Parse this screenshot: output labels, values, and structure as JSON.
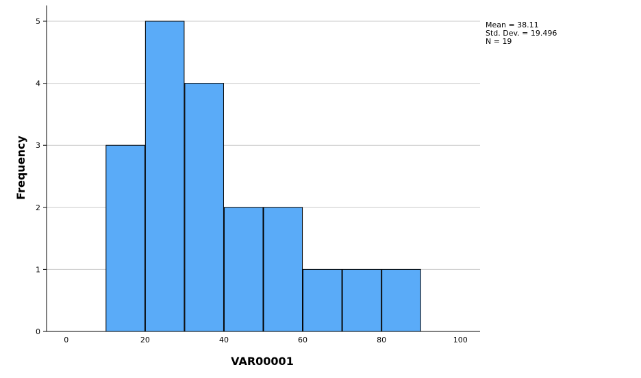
{
  "chart_data": {
    "type": "bar",
    "title": "",
    "xlabel": "VAR00001",
    "ylabel": "Frequency",
    "xlim": [
      -5,
      105
    ],
    "ylim": [
      0,
      5.25
    ],
    "x_ticks": [
      0,
      20,
      40,
      60,
      80,
      100
    ],
    "y_ticks": [
      0,
      1,
      2,
      3,
      4,
      5
    ],
    "grid": "horizontal",
    "bar_color": "#5aabf8",
    "bins": [
      {
        "start": 10,
        "end": 20,
        "value": 3
      },
      {
        "start": 20,
        "end": 30,
        "value": 5
      },
      {
        "start": 30,
        "end": 40,
        "value": 4
      },
      {
        "start": 40,
        "end": 50,
        "value": 2
      },
      {
        "start": 50,
        "end": 60,
        "value": 2
      },
      {
        "start": 60,
        "end": 70,
        "value": 1
      },
      {
        "start": 70,
        "end": 80,
        "value": 1
      },
      {
        "start": 80,
        "end": 90,
        "value": 1
      }
    ],
    "stats": {
      "mean": "Mean = 38.11",
      "std_dev": "Std. Dev. = 19.496",
      "n": "N = 19"
    }
  }
}
